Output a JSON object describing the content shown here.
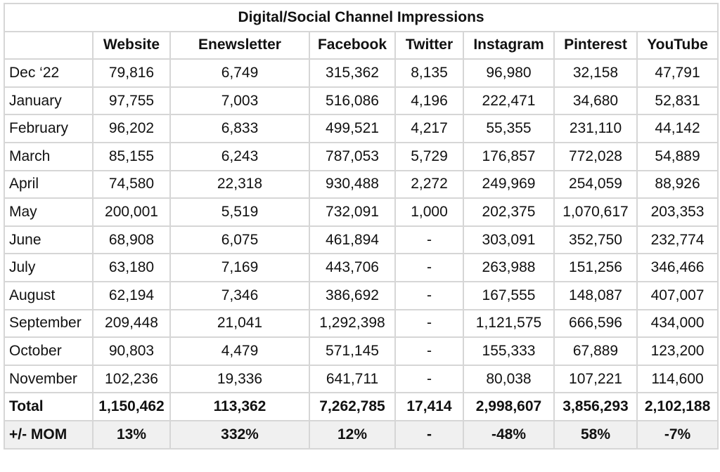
{
  "title": "Digital/Social Channel Impressions",
  "columns": [
    "",
    "Website",
    "Enewsletter",
    "Facebook",
    "Twitter",
    "Instagram",
    "Pinterest",
    "YouTube"
  ],
  "rows": [
    [
      "Dec ‘22",
      "79,816",
      "6,749",
      "315,362",
      "8,135",
      "96,980",
      "32,158",
      "47,791"
    ],
    [
      "January",
      "97,755",
      "7,003",
      "516,086",
      "4,196",
      "222,471",
      "34,680",
      "52,831"
    ],
    [
      "February",
      "96,202",
      "6,833",
      "499,521",
      "4,217",
      "55,355",
      "231,110",
      "44,142"
    ],
    [
      "March",
      "85,155",
      "6,243",
      "787,053",
      "5,729",
      "176,857",
      "772,028",
      "54,889"
    ],
    [
      "April",
      "74,580",
      "22,318",
      "930,488",
      "2,272",
      "249,969",
      "254,059",
      "88,926"
    ],
    [
      "May",
      "200,001",
      "5,519",
      "732,091",
      "1,000",
      "202,375",
      "1,070,617",
      "203,353"
    ],
    [
      "June",
      "68,908",
      "6,075",
      "461,894",
      "-",
      "303,091",
      "352,750",
      "232,774"
    ],
    [
      "July",
      "63,180",
      "7,169",
      "443,706",
      "-",
      "263,988",
      "151,256",
      "346,466"
    ],
    [
      "August",
      "62,194",
      "7,346",
      "386,692",
      "-",
      "167,555",
      "148,087",
      "407,007"
    ],
    [
      "September",
      "209,448",
      "21,041",
      "1,292,398",
      "-",
      "1,121,575",
      "666,596",
      "434,000"
    ],
    [
      "October",
      "90,803",
      "4,479",
      "571,145",
      "-",
      "155,333",
      "67,889",
      "123,200"
    ],
    [
      "November",
      "102,236",
      "19,336",
      "641,711",
      "-",
      "80,038",
      "107,221",
      "114,600"
    ]
  ],
  "total": [
    "Total",
    "1,150,462",
    "113,362",
    "7,262,785",
    "17,414",
    "2,998,607",
    "3,856,293",
    "2,102,188"
  ],
  "mom": [
    "+/- MOM",
    "13%",
    "332%",
    "12%",
    "-",
    "-48%",
    "58%",
    "-7%"
  ]
}
